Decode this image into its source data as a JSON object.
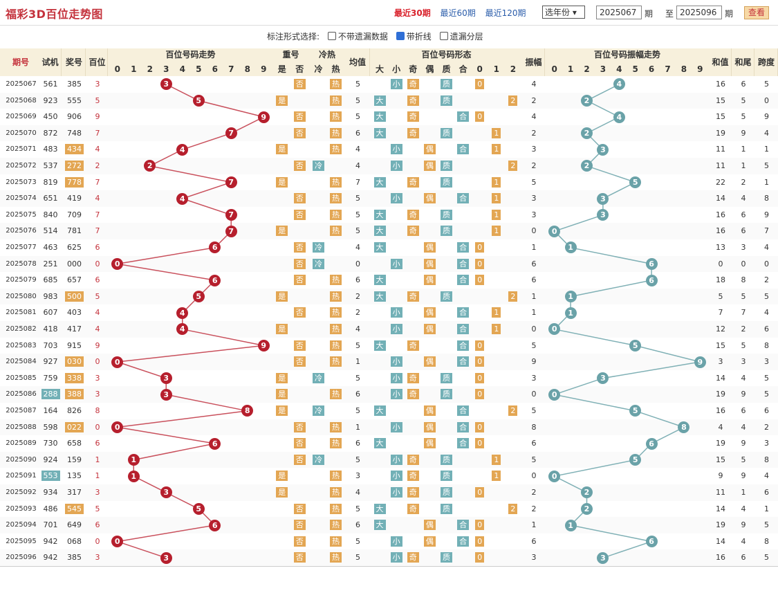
{
  "title": "福彩3D百位走势图",
  "periods": [
    "最近30期",
    "最近60期",
    "最近120期"
  ],
  "year_select": "选年份",
  "from_label": "期",
  "to_label": "至",
  "range_from": "2025067",
  "range_to": "2025096",
  "range_end_label": "期",
  "view_button": "查看",
  "mode_label": "标注形式选择:",
  "options": [
    "不带遗漏数据",
    "带折线",
    "遗漏分层"
  ],
  "headers": {
    "issue": "期号",
    "test": "试机",
    "prize": "奖号",
    "hundred": "百位",
    "trend": "百位号码走势",
    "repeat": "重号",
    "coldhot": "冷热",
    "avg": "均值",
    "shape": "百位号码形态",
    "amp": "振幅",
    "amp_trend": "百位号码振幅走势",
    "sum": "和值",
    "tail": "和尾",
    "span": "跨度",
    "digits": [
      "0",
      "1",
      "2",
      "3",
      "4",
      "5",
      "6",
      "7",
      "8",
      "9"
    ],
    "repeat_sub": [
      "是",
      "否"
    ],
    "coldhot_sub": [
      "冷",
      "热"
    ],
    "shape_sub": [
      "大",
      "小",
      "奇",
      "偶",
      "质",
      "合",
      "0",
      "1",
      "2"
    ]
  },
  "rows": [
    {
      "issue": "2025067",
      "test": "561",
      "prize": "385",
      "h": "3",
      "avg": "5",
      "amp": "4",
      "sum": "16",
      "tail": "6",
      "span": "5"
    },
    {
      "issue": "2025068",
      "test": "923",
      "prize": "555",
      "h": "5",
      "avg": "5",
      "amp": "2",
      "sum": "15",
      "tail": "5",
      "span": "0"
    },
    {
      "issue": "2025069",
      "test": "450",
      "prize": "906",
      "h": "9",
      "avg": "5",
      "amp": "4",
      "sum": "15",
      "tail": "5",
      "span": "9"
    },
    {
      "issue": "2025070",
      "test": "872",
      "prize": "748",
      "h": "7",
      "avg": "6",
      "amp": "2",
      "sum": "19",
      "tail": "9",
      "span": "4"
    },
    {
      "issue": "2025071",
      "test": "483",
      "prize": "434",
      "h": "4",
      "avg": "4",
      "amp": "3",
      "sum": "11",
      "tail": "1",
      "span": "1"
    },
    {
      "issue": "2025072",
      "test": "537",
      "prize": "272",
      "h": "2",
      "avg": "4",
      "amp": "2",
      "sum": "11",
      "tail": "1",
      "span": "5"
    },
    {
      "issue": "2025073",
      "test": "819",
      "prize": "778",
      "h": "7",
      "avg": "7",
      "amp": "5",
      "sum": "22",
      "tail": "2",
      "span": "1"
    },
    {
      "issue": "2025074",
      "test": "651",
      "prize": "419",
      "h": "4",
      "avg": "5",
      "amp": "3",
      "sum": "14",
      "tail": "4",
      "span": "8"
    },
    {
      "issue": "2025075",
      "test": "840",
      "prize": "709",
      "h": "7",
      "avg": "5",
      "amp": "3",
      "sum": "16",
      "tail": "6",
      "span": "9"
    },
    {
      "issue": "2025076",
      "test": "514",
      "prize": "781",
      "h": "7",
      "avg": "5",
      "amp": "0",
      "sum": "16",
      "tail": "6",
      "span": "7"
    },
    {
      "issue": "2025077",
      "test": "463",
      "prize": "625",
      "h": "6",
      "avg": "4",
      "amp": "1",
      "sum": "13",
      "tail": "3",
      "span": "4"
    },
    {
      "issue": "2025078",
      "test": "251",
      "prize": "000",
      "h": "0",
      "avg": "0",
      "amp": "6",
      "sum": "0",
      "tail": "0",
      "span": "0"
    },
    {
      "issue": "2025079",
      "test": "685",
      "prize": "657",
      "h": "6",
      "avg": "6",
      "amp": "6",
      "sum": "18",
      "tail": "8",
      "span": "2"
    },
    {
      "issue": "2025080",
      "test": "983",
      "prize": "500",
      "h": "5",
      "avg": "2",
      "amp": "1",
      "sum": "5",
      "tail": "5",
      "span": "5"
    },
    {
      "issue": "2025081",
      "test": "607",
      "prize": "403",
      "h": "4",
      "avg": "2",
      "amp": "1",
      "sum": "7",
      "tail": "7",
      "span": "4"
    },
    {
      "issue": "2025082",
      "test": "418",
      "prize": "417",
      "h": "4",
      "avg": "4",
      "amp": "0",
      "sum": "12",
      "tail": "2",
      "span": "6"
    },
    {
      "issue": "2025083",
      "test": "703",
      "prize": "915",
      "h": "9",
      "avg": "5",
      "amp": "5",
      "sum": "15",
      "tail": "5",
      "span": "8"
    },
    {
      "issue": "2025084",
      "test": "927",
      "prize": "030",
      "h": "0",
      "avg": "1",
      "amp": "9",
      "sum": "3",
      "tail": "3",
      "span": "3"
    },
    {
      "issue": "2025085",
      "test": "759",
      "prize": "338",
      "h": "3",
      "avg": "5",
      "amp": "3",
      "sum": "14",
      "tail": "4",
      "span": "5"
    },
    {
      "issue": "2025086",
      "test": "288",
      "prize": "388",
      "h": "3",
      "avg": "6",
      "amp": "0",
      "sum": "19",
      "tail": "9",
      "span": "5"
    },
    {
      "issue": "2025087",
      "test": "164",
      "prize": "826",
      "h": "8",
      "avg": "5",
      "amp": "5",
      "sum": "16",
      "tail": "6",
      "span": "6"
    },
    {
      "issue": "2025088",
      "test": "598",
      "prize": "022",
      "h": "0",
      "avg": "1",
      "amp": "8",
      "sum": "4",
      "tail": "4",
      "span": "2"
    },
    {
      "issue": "2025089",
      "test": "730",
      "prize": "658",
      "h": "6",
      "avg": "6",
      "amp": "6",
      "sum": "19",
      "tail": "9",
      "span": "3"
    },
    {
      "issue": "2025090",
      "test": "924",
      "prize": "159",
      "h": "1",
      "avg": "5",
      "amp": "5",
      "sum": "15",
      "tail": "5",
      "span": "8"
    },
    {
      "issue": "2025091",
      "test": "553",
      "prize": "135",
      "h": "1",
      "avg": "3",
      "amp": "0",
      "sum": "9",
      "tail": "9",
      "span": "4"
    },
    {
      "issue": "2025092",
      "test": "934",
      "prize": "317",
      "h": "3",
      "avg": "4",
      "amp": "2",
      "sum": "11",
      "tail": "1",
      "span": "6"
    },
    {
      "issue": "2025093",
      "test": "486",
      "prize": "545",
      "h": "5",
      "avg": "5",
      "amp": "2",
      "sum": "14",
      "tail": "4",
      "span": "1"
    },
    {
      "issue": "2025094",
      "test": "701",
      "prize": "649",
      "h": "6",
      "avg": "6",
      "amp": "1",
      "sum": "19",
      "tail": "9",
      "span": "5"
    },
    {
      "issue": "2025095",
      "test": "942",
      "prize": "068",
      "h": "0",
      "avg": "5",
      "amp": "6",
      "sum": "14",
      "tail": "4",
      "span": "8"
    },
    {
      "issue": "2025096",
      "test": "942",
      "prize": "385",
      "h": "3",
      "avg": "5",
      "amp": "3",
      "sum": "16",
      "tail": "6",
      "span": "5"
    }
  ],
  "colors": {
    "accent": "#d9232d",
    "ball_red": "#b61f2d",
    "ball_teal": "#6aa2a8",
    "tag_orange": "#e3a653",
    "tag_teal": "#72b0b6",
    "header_bg": "#f7f0dc"
  }
}
